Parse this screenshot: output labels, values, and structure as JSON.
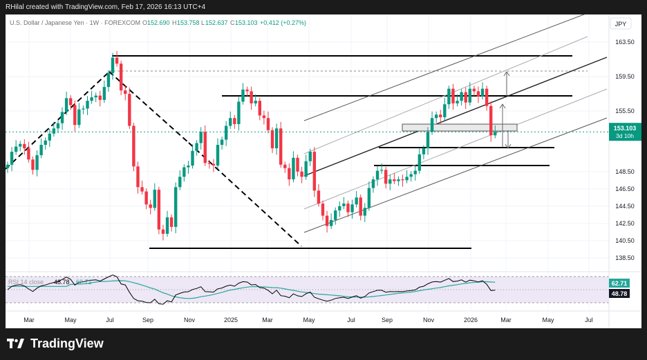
{
  "credit": "RHilal created with TradingView.com, Feb 17, 2026 16:13 UTC+4",
  "brand": "TradingView",
  "header": {
    "symbol": "U.S. Dollar / Japanese Yen · 1W · FOREXCOM",
    "o_label": "O",
    "o_value": "152.690",
    "h_label": "H",
    "h_value": "153.758",
    "l_label": "L",
    "l_value": "152.637",
    "c_label": "C",
    "c_value": "153.103",
    "change": "+0.412 (+0.27%)"
  },
  "currency": "JPY",
  "price_tag": {
    "value": "153.103",
    "countdown": "3d 10h"
  },
  "rsi": {
    "label": "RSI 14 close",
    "value1": "48.78",
    "value2": "62.71"
  },
  "colors": {
    "up": "#089981",
    "down": "#f23645",
    "rsi_line": "#000000",
    "rsi_ma": "#26a69a",
    "rsi_band": "#ede7f6"
  },
  "chart_data": {
    "type": "candlestick",
    "title": "U.S. Dollar / Japanese Yen · 1W · FOREXCOM",
    "y_ticks": [
      163.5,
      159.5,
      155.5,
      148.5,
      146.5,
      144.5,
      142.5,
      140.5,
      138.5
    ],
    "x_ticks": [
      "Mar",
      "May",
      "Jul",
      "Sep",
      "Nov",
      "2025",
      "Mar",
      "May",
      "Jul",
      "Sep",
      "Nov",
      "2026",
      "Mar",
      "May",
      "Jul"
    ],
    "ylim": [
      137.6,
      166.9
    ],
    "last_close": 153.103,
    "closes": [
      149.3,
      150.8,
      151.4,
      151.7,
      151.2,
      149.9,
      148.7,
      150.4,
      151.6,
      152.1,
      152.9,
      153.5,
      154.1,
      155.4,
      157.0,
      156.2,
      153.9,
      155.7,
      155.8,
      156.7,
      157.1,
      157.3,
      156.8,
      158.3,
      159.9,
      161.7,
      161.0,
      157.9,
      157.5,
      153.8,
      149.1,
      146.7,
      146.2,
      144.7,
      144.3,
      146.4,
      141.8,
      141.3,
      143.2,
      142.1,
      146.7,
      147.9,
      149.0,
      149.2,
      150.9,
      151.8,
      153.1,
      149.5,
      149.4,
      149.2,
      151.6,
      152.2,
      153.8,
      154.7,
      154.0,
      156.6,
      158.0,
      157.8,
      156.4,
      156.7,
      155.0,
      154.7,
      153.3,
      151.2,
      153.5,
      149.3,
      148.9,
      147.6,
      150.1,
      148.5,
      147.9,
      149.7,
      150.8,
      146.3,
      144.8,
      143.4,
      142.2,
      142.9,
      144.0,
      144.5,
      144.8,
      143.8,
      144.7,
      145.5,
      143.4,
      144.3,
      146.6,
      147.6,
      148.6,
      148.7,
      147.1,
      147.6,
      147.4,
      147.6,
      147.5,
      147.9,
      148.2,
      148.6,
      150.5,
      151.2,
      153.1,
      154.7,
      155.1,
      154.8,
      156.3,
      158.1,
      156.4,
      156.7,
      157.7,
      156.5,
      158.1,
      157.8,
      157.2,
      158.1,
      156.1,
      152.7,
      153.1
    ],
    "rsi": [
      50.0,
      55.1,
      56.8,
      57.6,
      55.6,
      51.1,
      47.2,
      52.4,
      55.8,
      57.2,
      59.3,
      60.9,
      62.5,
      65.6,
      69.2,
      65.8,
      57.0,
      61.5,
      61.8,
      63.7,
      64.5,
      64.9,
      63.1,
      66.3,
      69.5,
      72.4,
      69.7,
      58.6,
      57.3,
      46.0,
      36.5,
      33.0,
      32.3,
      30.4,
      30.0,
      35.4,
      28.4,
      27.8,
      33.1,
      31.3,
      41.9,
      44.3,
      46.4,
      46.8,
      50.2,
      51.9,
      54.4,
      46.9,
      46.7,
      46.3,
      51.3,
      52.5,
      55.4,
      57.0,
      55.3,
      59.9,
      62.2,
      61.6,
      57.3,
      57.9,
      53.2,
      52.4,
      48.8,
      43.7,
      49.2,
      40.8,
      40.0,
      37.7,
      43.6,
      40.6,
      39.5,
      43.8,
      46.3,
      38.4,
      36.1,
      34.0,
      32.4,
      34.0,
      36.5,
      37.7,
      38.4,
      36.5,
      38.8,
      40.7,
      37.1,
      39.5,
      44.9,
      47.1,
      49.0,
      49.1,
      46.1,
      47.1,
      46.8,
      47.2,
      47.0,
      48.0,
      48.7,
      49.6,
      53.8,
      55.2,
      58.9,
      61.7,
      62.3,
      61.5,
      64.3,
      67.1,
      62.3,
      63.0,
      64.9,
      61.5,
      64.5,
      63.5,
      61.8,
      63.7,
      58.2,
      48.6,
      49.3
    ],
    "rsi_ma": [
      55.0,
      55.0,
      55.0,
      55.0,
      55.0,
      55.0,
      55.0,
      55.0,
      55.0,
      55.0,
      55.0,
      55.0,
      55.0,
      55.0,
      55.0,
      58.0,
      58.2,
      58.5,
      58.7,
      59.4,
      60.6,
      61.6,
      62.3,
      62.5,
      62.8,
      63.3,
      63.6,
      63.7,
      63.5,
      62.3,
      60.6,
      58.9,
      57.0,
      55.0,
      52.6,
      50.9,
      48.0,
      45.3,
      43.3,
      40.6,
      38.9,
      37.7,
      36.8,
      36.5,
      36.8,
      37.8,
      39.3,
      40.2,
      41.3,
      42.7,
      44.3,
      45.9,
      47.7,
      49.4,
      50.4,
      51.7,
      52.8,
      53.9,
      54.5,
      54.6,
      54.5,
      54.2,
      53.7,
      53.2,
      53.0,
      52.3,
      51.2,
      49.9,
      48.9,
      47.6,
      46.5,
      45.7,
      45.1,
      44.0,
      43.2,
      42.7,
      42.2,
      41.8,
      41.2,
      40.6,
      39.8,
      39.0,
      38.8,
      38.6,
      38.5,
      38.6,
      38.9,
      39.6,
      40.3,
      41.1,
      41.9,
      42.7,
      43.6,
      44.4,
      45.0,
      45.6,
      46.3,
      47.2,
      48.4,
      49.6,
      50.5,
      51.4,
      52.4,
      53.3,
      54.5,
      55.8,
      56.7,
      57.7,
      58.7,
      59.6,
      60.5,
      61.1,
      61.4,
      62.1,
      62.1,
      61.7,
      61.4
    ],
    "rsi_levels": [
      70,
      30
    ],
    "rsi_values_shown": [
      "48.78",
      "62.71"
    ]
  }
}
